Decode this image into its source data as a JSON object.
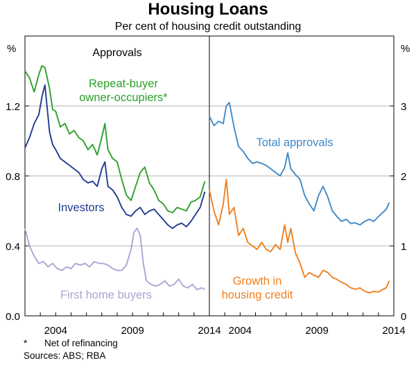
{
  "title": "Housing Loans",
  "subtitle": "Per cent of housing credit outstanding",
  "footnotes": {
    "star": "*",
    "star_text": "Net of refinancing",
    "sources": "Sources: ABS; RBA"
  },
  "chart_data": [
    {
      "type": "line",
      "panel_title": "Approvals",
      "ylabel": "%",
      "ylim": [
        0,
        1.6
      ],
      "yticks": [
        "0.0",
        "0.4",
        "0.8",
        "1.2"
      ],
      "xlim": [
        2002.0,
        2014.0
      ],
      "xticks": [
        "2004",
        "2009",
        "2014"
      ],
      "series": [
        {
          "name": "Repeat-buyer owner-occupiers*",
          "color": "#2ca02c",
          "x": [
            2002.0,
            2002.3,
            2002.6,
            2002.9,
            2003.1,
            2003.3,
            2003.6,
            2003.8,
            2004.0,
            2004.3,
            2004.6,
            2004.9,
            2005.2,
            2005.5,
            2005.8,
            2006.1,
            2006.4,
            2006.7,
            2007.0,
            2007.2,
            2007.4,
            2007.7,
            2008.0,
            2008.3,
            2008.6,
            2008.9,
            2009.2,
            2009.5,
            2009.8,
            2010.1,
            2010.4,
            2010.7,
            2011.0,
            2011.3,
            2011.6,
            2011.9,
            2012.2,
            2012.5,
            2012.8,
            2013.1,
            2013.4,
            2013.7
          ],
          "values": [
            1.4,
            1.36,
            1.28,
            1.38,
            1.43,
            1.42,
            1.3,
            1.18,
            1.17,
            1.08,
            1.1,
            1.04,
            1.06,
            1.02,
            1.0,
            0.95,
            0.98,
            0.92,
            1.02,
            1.1,
            0.95,
            0.9,
            0.88,
            0.78,
            0.69,
            0.66,
            0.74,
            0.82,
            0.85,
            0.76,
            0.72,
            0.66,
            0.64,
            0.6,
            0.59,
            0.62,
            0.61,
            0.6,
            0.65,
            0.66,
            0.68,
            0.77
          ]
        },
        {
          "name": "Investors",
          "color": "#1f3a93",
          "x": [
            2002.0,
            2002.3,
            2002.6,
            2002.9,
            2003.1,
            2003.3,
            2003.6,
            2003.8,
            2004.0,
            2004.3,
            2004.6,
            2004.9,
            2005.2,
            2005.5,
            2005.8,
            2006.1,
            2006.4,
            2006.7,
            2007.0,
            2007.2,
            2007.4,
            2007.7,
            2008.0,
            2008.3,
            2008.6,
            2008.9,
            2009.2,
            2009.5,
            2009.8,
            2010.1,
            2010.4,
            2010.7,
            2011.0,
            2011.3,
            2011.6,
            2011.9,
            2012.2,
            2012.5,
            2012.8,
            2013.1,
            2013.4,
            2013.7
          ],
          "values": [
            0.96,
            1.02,
            1.1,
            1.15,
            1.25,
            1.32,
            1.05,
            0.98,
            0.95,
            0.9,
            0.88,
            0.86,
            0.84,
            0.82,
            0.78,
            0.76,
            0.77,
            0.74,
            0.84,
            0.88,
            0.74,
            0.72,
            0.68,
            0.62,
            0.58,
            0.57,
            0.6,
            0.62,
            0.58,
            0.6,
            0.61,
            0.58,
            0.55,
            0.52,
            0.5,
            0.52,
            0.53,
            0.51,
            0.54,
            0.58,
            0.62,
            0.71
          ]
        },
        {
          "name": "First home buyers",
          "color": "#a6a6d6",
          "x": [
            2002.0,
            2002.3,
            2002.6,
            2002.9,
            2003.2,
            2003.5,
            2003.8,
            2004.1,
            2004.4,
            2004.7,
            2005.0,
            2005.3,
            2005.6,
            2005.9,
            2006.2,
            2006.5,
            2006.8,
            2007.1,
            2007.4,
            2007.7,
            2008.0,
            2008.3,
            2008.6,
            2008.9,
            2009.1,
            2009.3,
            2009.5,
            2009.7,
            2009.9,
            2010.2,
            2010.5,
            2010.8,
            2011.1,
            2011.4,
            2011.7,
            2012.0,
            2012.3,
            2012.6,
            2012.9,
            2013.2,
            2013.5,
            2013.7
          ],
          "values": [
            0.5,
            0.4,
            0.34,
            0.3,
            0.31,
            0.28,
            0.3,
            0.27,
            0.26,
            0.28,
            0.27,
            0.3,
            0.29,
            0.3,
            0.28,
            0.31,
            0.3,
            0.3,
            0.29,
            0.27,
            0.26,
            0.26,
            0.29,
            0.38,
            0.48,
            0.5,
            0.46,
            0.3,
            0.2,
            0.18,
            0.17,
            0.18,
            0.2,
            0.17,
            0.18,
            0.21,
            0.17,
            0.16,
            0.18,
            0.15,
            0.16,
            0.15
          ]
        }
      ]
    },
    {
      "type": "line",
      "panel_title": "",
      "ylabel": "%",
      "ylim": [
        0,
        4
      ],
      "yticks": [
        "0",
        "1",
        "2",
        "3"
      ],
      "xlim": [
        2002.0,
        2014.0
      ],
      "xticks": [
        "2004",
        "2009",
        "2014"
      ],
      "series": [
        {
          "name": "Total approvals",
          "color": "#3f88c5",
          "x": [
            2002.0,
            2002.3,
            2002.6,
            2002.9,
            2003.1,
            2003.3,
            2003.6,
            2003.9,
            2004.2,
            2004.5,
            2004.8,
            2005.1,
            2005.4,
            2005.7,
            2006.0,
            2006.3,
            2006.6,
            2006.9,
            2007.1,
            2007.3,
            2007.6,
            2007.9,
            2008.2,
            2008.5,
            2008.8,
            2009.1,
            2009.4,
            2009.7,
            2010.0,
            2010.3,
            2010.6,
            2010.9,
            2011.2,
            2011.5,
            2011.8,
            2012.1,
            2012.4,
            2012.7,
            2013.0,
            2013.3,
            2013.5,
            2013.7
          ],
          "values": [
            2.85,
            2.72,
            2.78,
            2.75,
            3.0,
            3.05,
            2.7,
            2.42,
            2.35,
            2.25,
            2.18,
            2.2,
            2.18,
            2.15,
            2.1,
            2.05,
            2.0,
            2.12,
            2.33,
            2.1,
            2.02,
            1.95,
            1.72,
            1.6,
            1.5,
            1.72,
            1.85,
            1.7,
            1.5,
            1.42,
            1.35,
            1.38,
            1.32,
            1.33,
            1.3,
            1.35,
            1.38,
            1.35,
            1.42,
            1.48,
            1.52,
            1.62
          ]
        },
        {
          "name": "Growth in housing credit",
          "color": "#f07f1e",
          "x": [
            2002.0,
            2002.3,
            2002.6,
            2002.9,
            2003.1,
            2003.3,
            2003.6,
            2003.9,
            2004.2,
            2004.5,
            2004.8,
            2005.1,
            2005.4,
            2005.7,
            2006.0,
            2006.3,
            2006.6,
            2006.9,
            2007.1,
            2007.3,
            2007.6,
            2007.9,
            2008.2,
            2008.5,
            2008.8,
            2009.1,
            2009.4,
            2009.7,
            2010.0,
            2010.3,
            2010.6,
            2010.9,
            2011.2,
            2011.5,
            2011.8,
            2012.1,
            2012.4,
            2012.7,
            2013.0,
            2013.3,
            2013.5,
            2013.7
          ],
          "values": [
            1.8,
            1.5,
            1.3,
            1.6,
            1.95,
            1.45,
            1.55,
            1.15,
            1.25,
            1.05,
            1.0,
            0.95,
            1.05,
            0.95,
            0.92,
            1.02,
            0.95,
            1.3,
            1.05,
            1.25,
            0.9,
            0.75,
            0.55,
            0.62,
            0.58,
            0.55,
            0.65,
            0.62,
            0.55,
            0.52,
            0.48,
            0.45,
            0.4,
            0.38,
            0.4,
            0.35,
            0.33,
            0.35,
            0.34,
            0.38,
            0.4,
            0.5
          ]
        }
      ]
    }
  ]
}
